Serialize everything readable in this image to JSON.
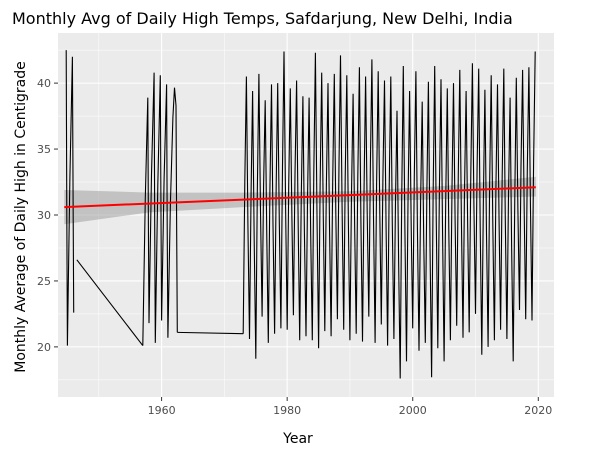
{
  "chart_data": {
    "type": "line",
    "title": "Monthly Avg of Daily High Temps, Safdarjung, New Delhi, India",
    "xlabel": "Year",
    "ylabel": "Monthly Average of Daily High in Centigrade",
    "xlim": [
      1943.5,
      2022.5
    ],
    "ylim": [
      16.2,
      43.8
    ],
    "x_ticks": [
      1960,
      1980,
      2000,
      2020
    ],
    "y_ticks": [
      20,
      25,
      30,
      35,
      40
    ],
    "grid": true,
    "legend": "none",
    "colors": {
      "panel_background": "#ebebeb",
      "grid": "#ffffff",
      "series_line": "#000000",
      "trend_line": "#ff0000",
      "confidence_band": "#999999"
    },
    "series": [
      {
        "role": "monthly_values",
        "segments": [
          {
            "start_year": 1944.5,
            "end_year": 1946.5,
            "min": 20.1,
            "max": 42.5,
            "note_points": [
              [
                1944.5,
                21.0
              ],
              [
                1946.5,
                26.6
              ]
            ]
          },
          {
            "start_year": 1957.0,
            "end_year": 1962.5,
            "min": 20.1,
            "max": 40.8
          },
          {
            "start_year": 1973.0,
            "end_year": 2019.6,
            "min": 17.6,
            "max": 42.5
          }
        ],
        "bridges": [
          [
            [
              1946.5,
              26.6
            ],
            [
              1957.0,
              20.1
            ]
          ],
          [
            [
              1962.5,
              21.1
            ],
            [
              1973.0,
              21.0
            ]
          ]
        ],
        "annual_peaks": [
          [
            1944.8,
            42.5
          ],
          [
            1945.8,
            42.0
          ],
          [
            1957.8,
            38.9
          ],
          [
            1958.8,
            40.8
          ],
          [
            1959.8,
            40.6
          ],
          [
            1960.8,
            39.9
          ],
          [
            1961.8,
            37.4
          ],
          [
            1962.3,
            38.3
          ],
          [
            1973.5,
            40.5
          ],
          [
            1974.5,
            39.4
          ],
          [
            1975.5,
            40.7
          ],
          [
            1976.5,
            38.7
          ],
          [
            1977.5,
            39.9
          ],
          [
            1978.5,
            40.0
          ],
          [
            1979.5,
            42.4
          ],
          [
            1980.5,
            39.6
          ],
          [
            1981.5,
            40.2
          ],
          [
            1982.5,
            39.0
          ],
          [
            1983.5,
            38.9
          ],
          [
            1984.5,
            42.3
          ],
          [
            1985.5,
            40.8
          ],
          [
            1986.5,
            40.0
          ],
          [
            1987.5,
            40.7
          ],
          [
            1988.5,
            42.1
          ],
          [
            1989.5,
            40.6
          ],
          [
            1990.5,
            39.2
          ],
          [
            1991.5,
            41.2
          ],
          [
            1992.5,
            40.5
          ],
          [
            1993.5,
            41.8
          ],
          [
            1994.5,
            40.9
          ],
          [
            1995.5,
            40.2
          ],
          [
            1996.5,
            40.5
          ],
          [
            1997.5,
            37.9
          ],
          [
            1998.5,
            41.3
          ],
          [
            1999.5,
            39.4
          ],
          [
            2000.5,
            40.9
          ],
          [
            2001.5,
            38.6
          ],
          [
            2002.5,
            40.1
          ],
          [
            2003.5,
            41.3
          ],
          [
            2004.5,
            40.3
          ],
          [
            2005.5,
            39.6
          ],
          [
            2006.5,
            40.0
          ],
          [
            2007.5,
            41.0
          ],
          [
            2008.5,
            39.4
          ],
          [
            2009.5,
            41.5
          ],
          [
            2010.5,
            41.1
          ],
          [
            2011.5,
            39.5
          ],
          [
            2012.5,
            40.6
          ],
          [
            2013.5,
            39.9
          ],
          [
            2014.5,
            41.1
          ],
          [
            2015.5,
            38.9
          ],
          [
            2016.5,
            40.4
          ],
          [
            2017.5,
            41.0
          ],
          [
            2018.5,
            41.2
          ],
          [
            2019.5,
            42.4
          ]
        ],
        "annual_lows": [
          [
            1945.0,
            20.1
          ],
          [
            1946.0,
            22.6
          ],
          [
            1957.0,
            20.1
          ],
          [
            1958.0,
            21.8
          ],
          [
            1959.0,
            20.3
          ],
          [
            1960.0,
            22.0
          ],
          [
            1961.0,
            20.7
          ],
          [
            1962.5,
            21.1
          ],
          [
            1973.0,
            21.0
          ],
          [
            1974.0,
            20.6
          ],
          [
            1975.0,
            19.1
          ],
          [
            1976.0,
            22.3
          ],
          [
            1977.0,
            20.3
          ],
          [
            1978.0,
            21.0
          ],
          [
            1979.0,
            21.4
          ],
          [
            1980.0,
            21.3
          ],
          [
            1981.0,
            22.4
          ],
          [
            1982.0,
            20.5
          ],
          [
            1983.0,
            20.8
          ],
          [
            1984.0,
            20.5
          ],
          [
            1985.0,
            19.9
          ],
          [
            1986.0,
            21.2
          ],
          [
            1987.0,
            20.8
          ],
          [
            1988.0,
            22.1
          ],
          [
            1989.0,
            21.3
          ],
          [
            1990.0,
            20.5
          ],
          [
            1991.0,
            21.0
          ],
          [
            1992.0,
            20.4
          ],
          [
            1993.0,
            22.3
          ],
          [
            1994.0,
            20.3
          ],
          [
            1995.0,
            21.7
          ],
          [
            1996.0,
            20.1
          ],
          [
            1997.0,
            20.6
          ],
          [
            1998.0,
            17.6
          ],
          [
            1999.0,
            18.9
          ],
          [
            2000.0,
            21.4
          ],
          [
            2001.0,
            19.7
          ],
          [
            2002.0,
            20.3
          ],
          [
            2003.0,
            17.7
          ],
          [
            2004.0,
            19.9
          ],
          [
            2005.0,
            18.9
          ],
          [
            2006.0,
            20.5
          ],
          [
            2007.0,
            21.6
          ],
          [
            2008.0,
            20.7
          ],
          [
            2009.0,
            21.1
          ],
          [
            2010.0,
            22.5
          ],
          [
            2011.0,
            19.4
          ],
          [
            2012.0,
            20.0
          ],
          [
            2013.0,
            20.5
          ],
          [
            2014.0,
            21.3
          ],
          [
            2015.0,
            20.6
          ],
          [
            2016.0,
            18.9
          ],
          [
            2017.0,
            22.8
          ],
          [
            2018.0,
            22.1
          ],
          [
            2019.0,
            22.0
          ]
        ]
      },
      {
        "role": "linear_trend",
        "x": [
          1944.5,
          2019.6
        ],
        "y": [
          30.6,
          32.1
        ]
      },
      {
        "role": "confidence_band",
        "x": [
          1944.5,
          1958,
          1973,
          1990,
          2005,
          2019.6
        ],
        "lower": [
          29.3,
          30.2,
          30.6,
          31.0,
          31.2,
          31.4
        ],
        "upper": [
          31.9,
          31.7,
          31.7,
          31.8,
          32.2,
          32.9
        ]
      }
    ]
  }
}
